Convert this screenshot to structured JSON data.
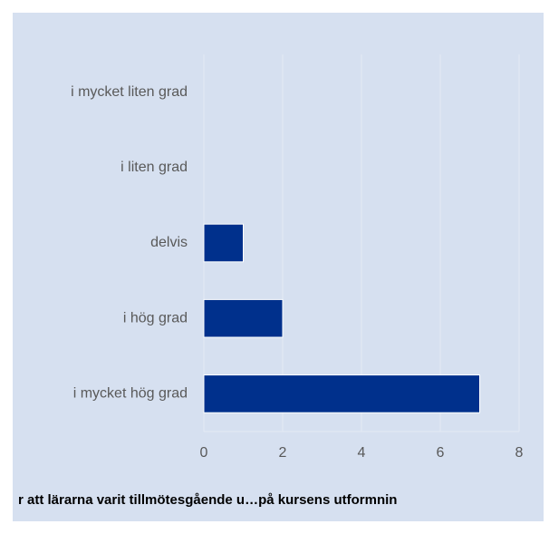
{
  "chart_data": {
    "type": "bar",
    "orientation": "horizontal",
    "xlabel": "r att lärarna varit tillmötesgående u…på kursens utformnin",
    "categories": [
      "i mycket liten grad",
      "i liten grad",
      "delvis",
      "i hög grad",
      "i mycket hög grad"
    ],
    "values": [
      0,
      0,
      1,
      2,
      7
    ],
    "color": "#00308c",
    "xlim": [
      0,
      8
    ],
    "xticks": [
      0,
      2,
      4,
      6,
      8
    ],
    "grid": true
  }
}
